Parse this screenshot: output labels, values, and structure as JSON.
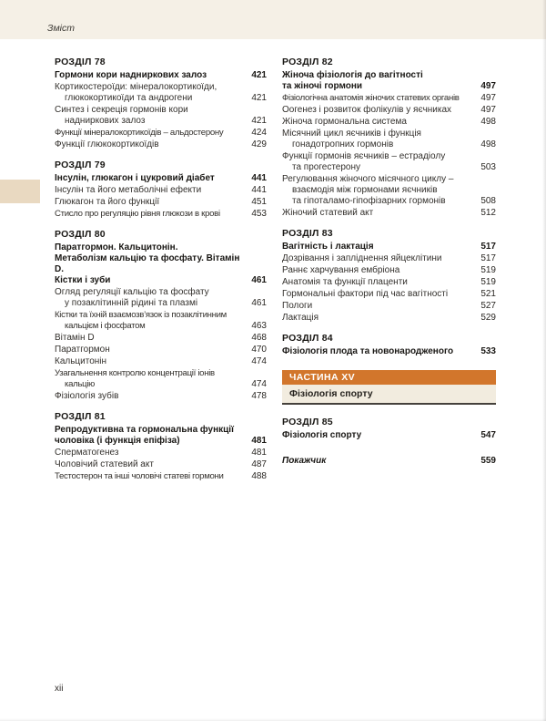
{
  "header": {
    "label": "Зміст"
  },
  "footer": {
    "page_number": "xii"
  },
  "colors": {
    "top_band": "#f5f0e6",
    "side_tab": "#e9d9c1",
    "part_bar": "#d2762c",
    "part_bg": "#f2ecdf"
  },
  "columns": [
    {
      "blocks": [
        {
          "type": "section",
          "chapter": "РОЗДІЛ 78",
          "title": "Гормони кори надниркових залоз",
          "page": "421",
          "items": [
            {
              "text": "Кортикостероїди: мінералокортикоїди,\nглюкокортикоїди та андрогени",
              "page": "421"
            },
            {
              "text": "Синтез і секреція гормонів кори\nнадниркових залоз",
              "page": "421"
            },
            {
              "text": "Функції мінералокортикоїдів – альдостерону",
              "page": "424",
              "tight": true
            },
            {
              "text": "Функції глюкокортикоїдів",
              "page": "429"
            }
          ]
        },
        {
          "type": "section",
          "chapter": "РОЗДІЛ 79",
          "title": "Інсулін, глюкагон і цукровий діабет",
          "page": "441",
          "items": [
            {
              "text": "Інсулін та його метаболічні ефекти",
              "page": "441"
            },
            {
              "text": "Глюкагон та його функції",
              "page": "451"
            },
            {
              "text": "Стисло про регуляцію рівня глюкози в крові",
              "page": "453",
              "tight": true
            }
          ]
        },
        {
          "type": "section",
          "chapter": "РОЗДІЛ 80",
          "title": "Паратгормон. Кальцитонін.\nМетаболізм кальцію та фосфату. Вітамін D.\nКістки і зуби",
          "page": "461",
          "items": [
            {
              "text": "Огляд регуляції кальцію та фосфату\nу позаклітинній рідині та плазмі",
              "page": "461"
            },
            {
              "text": "Кістки та їхній взаємозв’язок із позаклітинним\nкальцієм і фосфатом",
              "page": "463",
              "tight": true
            },
            {
              "text": "Вітамін D",
              "page": "468"
            },
            {
              "text": "Паратгормон",
              "page": "470"
            },
            {
              "text": "Кальцитонін",
              "page": "474"
            },
            {
              "text": "Узагальнення контролю концентрації іонів кальцію",
              "page": "474",
              "tight": true
            },
            {
              "text": "Фізіологія зубів",
              "page": "478"
            }
          ]
        },
        {
          "type": "section",
          "chapter": "РОЗДІЛ 81",
          "title": "Репродуктивна та гормональна функції\nчоловіка (і функція епіфіза)",
          "page": "481",
          "items": [
            {
              "text": "Сперматогенез",
              "page": "481"
            },
            {
              "text": "Чоловічий статевий акт",
              "page": "487"
            },
            {
              "text": "Тестостерон та інші чоловічі статеві гормони",
              "page": "488",
              "tight": true
            }
          ]
        }
      ]
    },
    {
      "blocks": [
        {
          "type": "section",
          "chapter": "РОЗДІЛ 82",
          "title": "Жіноча фізіологія до вагітності\nта жіночі гормони",
          "page": "497",
          "items": [
            {
              "text": "Фізіологічна анатомія жіночих статевих органів",
              "page": "497",
              "tight": true
            },
            {
              "text": "Оогенез і розвиток фолікулів у яєчниках",
              "page": "497"
            },
            {
              "text": "Жіноча гормональна система",
              "page": "498"
            },
            {
              "text": "Місячний цикл яєчників і функція\nгонадотропних гормонів",
              "page": "498"
            },
            {
              "text": "Функції гормонів яєчників – естрадіолу\nта прогестерону",
              "page": "503"
            },
            {
              "text": "Регулювання жіночого місячного циклу –\nвзаємодія між гормонами яєчників\nта гіпоталамо-гіпофізарних гормонів",
              "page": "508"
            },
            {
              "text": "Жіночий статевий акт",
              "page": "512"
            }
          ]
        },
        {
          "type": "section",
          "chapter": "РОЗДІЛ 83",
          "title": "Вагітність і лактація",
          "page": "517",
          "items": [
            {
              "text": "Дозрівання і запліднення яйцеклітини",
              "page": "517"
            },
            {
              "text": "Раннє харчування ембріона",
              "page": "519"
            },
            {
              "text": "Анатомія та функції плаценти",
              "page": "519"
            },
            {
              "text": "Гормональні фактори під час вагітності",
              "page": "521"
            },
            {
              "text": "Пологи",
              "page": "527"
            },
            {
              "text": "Лактація",
              "page": "529"
            }
          ]
        },
        {
          "type": "section",
          "chapter": "РОЗДІЛ 84",
          "title": "Фізіологія плода та новонародженого",
          "page": "533",
          "items": []
        },
        {
          "type": "part_banner",
          "part_label": "ЧАСТИНА XV",
          "part_title": "Фізіологія спорту"
        },
        {
          "type": "section",
          "chapter": "РОЗДІЛ 85",
          "title": "Фізіологія спорту",
          "page": "547",
          "items": []
        },
        {
          "type": "index",
          "label": "Покажчик",
          "page": "559"
        }
      ]
    }
  ]
}
